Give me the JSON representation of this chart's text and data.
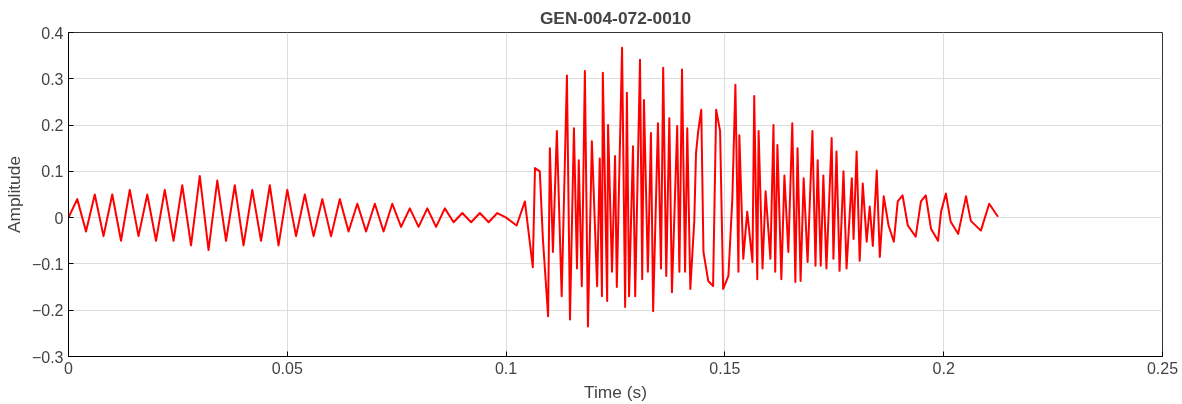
{
  "chart_data": {
    "type": "line",
    "title": "GEN-004-072-0010",
    "xlabel": "Time (s)",
    "ylabel": "Amplitude",
    "xlim": [
      0,
      0.25
    ],
    "xticks": [
      0,
      0.05,
      0.1,
      0.15,
      0.2,
      0.25
    ],
    "ylim": [
      -0.3,
      0.4
    ],
    "yticks": [
      -0.3,
      -0.2,
      -0.1,
      0,
      0.1,
      0.2,
      0.3,
      0.4
    ],
    "grid": true,
    "marker": "none",
    "line_style": "solid",
    "series": [
      {
        "color": "#ff0000",
        "x": [
          0,
          0.002,
          0.004,
          0.006,
          0.008,
          0.01,
          0.012,
          0.014,
          0.016,
          0.018,
          0.02,
          0.022,
          0.024,
          0.026,
          0.028,
          0.03,
          0.032,
          0.034,
          0.036,
          0.038,
          0.04,
          0.042,
          0.044,
          0.046,
          0.048,
          0.05,
          0.052,
          0.054,
          0.056,
          0.058,
          0.06,
          0.062,
          0.064,
          0.066,
          0.068,
          0.07,
          0.072,
          0.074,
          0.076,
          0.078,
          0.08,
          0.082,
          0.084,
          0.086,
          0.088,
          0.09,
          0.092,
          0.094,
          0.096,
          0.098,
          0.1,
          0.1024,
          0.1043,
          0.1061,
          0.1066,
          0.1077,
          0.1084,
          0.1096,
          0.11,
          0.1107,
          0.1116,
          0.1127,
          0.1139,
          0.1146,
          0.1155,
          0.1162,
          0.1166,
          0.1173,
          0.118,
          0.1187,
          0.1196,
          0.1208,
          0.1214,
          0.1219,
          0.1221,
          0.1231,
          0.1233,
          0.1242,
          0.1249,
          0.1253,
          0.1265,
          0.1272,
          0.1276,
          0.1281,
          0.129,
          0.1295,
          0.1306,
          0.1311,
          0.1315,
          0.1324,
          0.1331,
          0.1336,
          0.1347,
          0.1354,
          0.1359,
          0.1366,
          0.1373,
          0.1379,
          0.1391,
          0.1396,
          0.1402,
          0.1409,
          0.1414,
          0.1421,
          0.143,
          0.1434,
          0.1439,
          0.1446,
          0.1451,
          0.1462,
          0.1473,
          0.148,
          0.1489,
          0.1496,
          0.1508,
          0.1517,
          0.1524,
          0.1531,
          0.1533,
          0.1542,
          0.1551,
          0.1563,
          0.1567,
          0.1574,
          0.1577,
          0.1586,
          0.1593,
          0.1604,
          0.1611,
          0.1615,
          0.162,
          0.1629,
          0.1636,
          0.1645,
          0.1654,
          0.1661,
          0.1666,
          0.1673,
          0.168,
          0.1689,
          0.17,
          0.1707,
          0.1712,
          0.1719,
          0.1725,
          0.1732,
          0.1744,
          0.1748,
          0.1755,
          0.1762,
          0.1771,
          0.1778,
          0.179,
          0.1794,
          0.1801,
          0.1808,
          0.1815,
          0.1824,
          0.1831,
          0.1838,
          0.1847,
          0.1854,
          0.1863,
          0.1874,
          0.1886,
          0.1895,
          0.1906,
          0.1918,
          0.1936,
          0.1948,
          0.1959,
          0.1971,
          0.1987,
          0.1994,
          0.2005,
          0.2016,
          0.2033,
          0.2051,
          0.2062,
          0.2085,
          0.2104,
          0.2124
        ],
        "values": [
          0.0,
          0.04,
          -0.03,
          0.05,
          -0.04,
          0.05,
          -0.05,
          0.06,
          -0.04,
          0.05,
          -0.05,
          0.06,
          -0.05,
          0.07,
          -0.06,
          0.09,
          -0.07,
          0.08,
          -0.05,
          0.07,
          -0.06,
          0.06,
          -0.05,
          0.07,
          -0.06,
          0.06,
          -0.04,
          0.05,
          -0.04,
          0.04,
          -0.04,
          0.04,
          -0.03,
          0.03,
          -0.03,
          0.03,
          -0.03,
          0.03,
          -0.02,
          0.02,
          -0.02,
          0.02,
          -0.02,
          0.02,
          -0.01,
          0.01,
          -0.01,
          0.01,
          -0.01,
          0.01,
          0.0,
          -0.017,
          0.035,
          -0.107,
          0.107,
          0.1,
          -0.045,
          -0.213,
          0.15,
          -0.074,
          0.187,
          -0.17,
          0.307,
          -0.22,
          0.193,
          -0.11,
          0.124,
          -0.148,
          0.317,
          -0.235,
          0.165,
          -0.148,
          0.128,
          -0.17,
          0.313,
          -0.18,
          0.2,
          -0.117,
          0.133,
          -0.15,
          0.367,
          -0.193,
          0.27,
          -0.17,
          0.154,
          -0.17,
          0.341,
          -0.133,
          0.254,
          -0.117,
          0.183,
          -0.202,
          0.204,
          -0.11,
          0.324,
          -0.126,
          0.215,
          -0.161,
          0.198,
          -0.117,
          0.32,
          -0.117,
          0.193,
          -0.154,
          -0.007,
          0.139,
          0.187,
          0.233,
          -0.074,
          -0.137,
          -0.148,
          0.233,
          0.187,
          -0.154,
          -0.126,
          0.041,
          0.287,
          -0.117,
          0.178,
          -0.089,
          0.013,
          -0.096,
          0.263,
          -0.133,
          0.187,
          -0.11,
          0.057,
          -0.089,
          0.2,
          -0.117,
          0.157,
          -0.133,
          0.091,
          -0.074,
          0.204,
          -0.139,
          0.15,
          -0.137,
          0.085,
          -0.096,
          0.187,
          -0.104,
          0.124,
          -0.104,
          0.091,
          -0.11,
          0.172,
          -0.089,
          0.143,
          -0.115,
          0.1,
          -0.11,
          0.085,
          -0.046,
          0.143,
          -0.093,
          0.074,
          -0.052,
          0.024,
          -0.061,
          0.102,
          -0.085,
          0.046,
          -0.017,
          -0.052,
          0.035,
          0.048,
          -0.017,
          -0.041,
          0.035,
          0.048,
          -0.024,
          -0.05,
          0.013,
          0.052,
          -0.009,
          -0.035,
          0.046,
          -0.007,
          -0.028,
          0.03,
          0.002
        ]
      }
    ]
  }
}
